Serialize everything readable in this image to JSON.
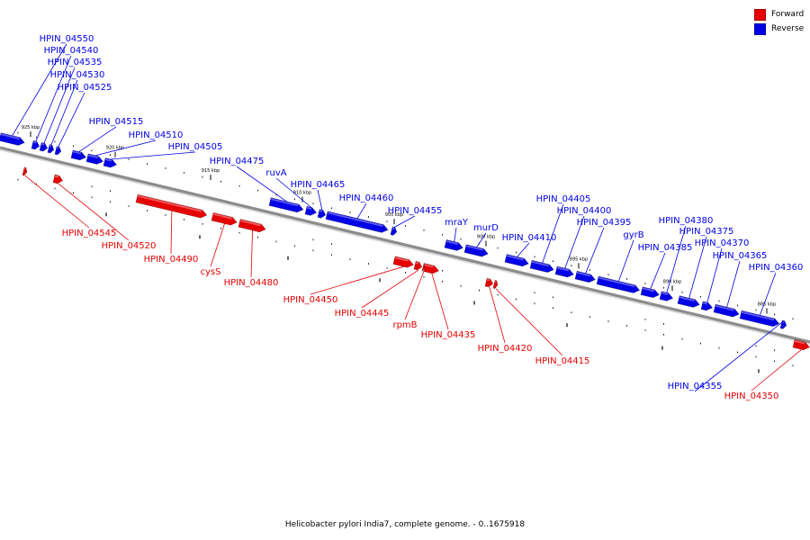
{
  "legend": {
    "forward_label": "Forward",
    "reverse_label": "Reverse",
    "forward_color": "#e60000",
    "reverse_color": "#0000e6"
  },
  "caption": "Helicobacter pylori India7, complete genome. - 0..1675918",
  "axis": {
    "backbone_color": "#8c8c8c",
    "ticks": [
      {
        "kbp": 925,
        "label": "925 kbp"
      },
      {
        "kbp": 920,
        "label": "920 kbp"
      },
      {
        "kbp": 915,
        "label": "915 kbp"
      },
      {
        "kbp": 910,
        "label": "910 kbp"
      },
      {
        "kbp": 905,
        "label": "905 kbp"
      },
      {
        "kbp": 900,
        "label": "900 kbp"
      },
      {
        "kbp": 895,
        "label": "895 kbp"
      },
      {
        "kbp": 890,
        "label": "890 kbp"
      },
      {
        "kbp": 885,
        "label": "885 kbp"
      }
    ]
  },
  "genes": [
    {
      "name": "HPIN_04550",
      "strand": "reverse"
    },
    {
      "name": "HPIN_04540",
      "strand": "reverse"
    },
    {
      "name": "HPIN_04535",
      "strand": "reverse"
    },
    {
      "name": "HPIN_04530",
      "strand": "reverse"
    },
    {
      "name": "HPIN_04525",
      "strand": "reverse"
    },
    {
      "name": "HPIN_04515",
      "strand": "reverse"
    },
    {
      "name": "HPIN_04510",
      "strand": "reverse"
    },
    {
      "name": "HPIN_04505",
      "strand": "reverse"
    },
    {
      "name": "HPIN_04475",
      "strand": "reverse"
    },
    {
      "name": "ruvA",
      "strand": "reverse"
    },
    {
      "name": "HPIN_04465",
      "strand": "reverse"
    },
    {
      "name": "HPIN_04460",
      "strand": "reverse"
    },
    {
      "name": "HPIN_04455",
      "strand": "reverse"
    },
    {
      "name": "mraY",
      "strand": "reverse"
    },
    {
      "name": "murD",
      "strand": "reverse"
    },
    {
      "name": "HPIN_04410",
      "strand": "reverse"
    },
    {
      "name": "HPIN_04405",
      "strand": "reverse"
    },
    {
      "name": "HPIN_04400",
      "strand": "reverse"
    },
    {
      "name": "HPIN_04395",
      "strand": "reverse"
    },
    {
      "name": "gyrB",
      "strand": "reverse"
    },
    {
      "name": "HPIN_04385",
      "strand": "reverse"
    },
    {
      "name": "HPIN_04380",
      "strand": "reverse"
    },
    {
      "name": "HPIN_04375",
      "strand": "reverse"
    },
    {
      "name": "HPIN_04370",
      "strand": "reverse"
    },
    {
      "name": "HPIN_04365",
      "strand": "reverse"
    },
    {
      "name": "HPIN_04360",
      "strand": "reverse"
    },
    {
      "name": "HPIN_04355",
      "strand": "reverse"
    },
    {
      "name": "HPIN_04350",
      "strand": "forward"
    },
    {
      "name": "HPIN_04545",
      "strand": "forward"
    },
    {
      "name": "HPIN_04520",
      "strand": "forward"
    },
    {
      "name": "HPIN_04490",
      "strand": "forward"
    },
    {
      "name": "cysS",
      "strand": "forward"
    },
    {
      "name": "HPIN_04480",
      "strand": "forward"
    },
    {
      "name": "HPIN_04450",
      "strand": "forward"
    },
    {
      "name": "HPIN_04445",
      "strand": "forward"
    },
    {
      "name": "rpmB",
      "strand": "forward"
    },
    {
      "name": "HPIN_04435",
      "strand": "forward"
    },
    {
      "name": "HPIN_04420",
      "strand": "forward"
    },
    {
      "name": "HPIN_04415",
      "strand": "forward"
    }
  ]
}
